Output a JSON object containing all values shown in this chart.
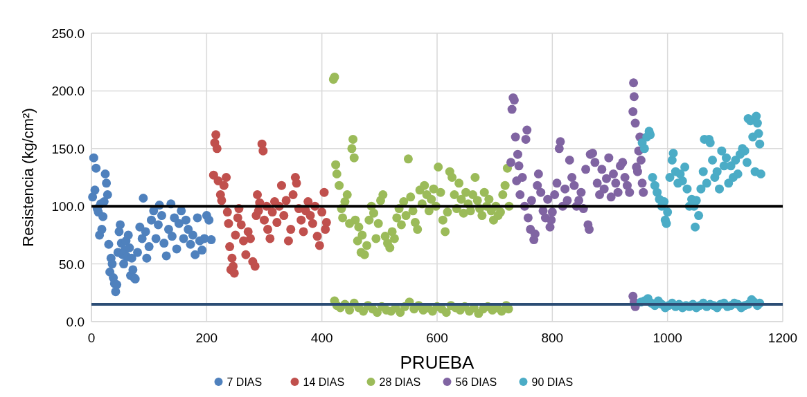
{
  "chart_data": {
    "type": "scatter",
    "xlabel": "PRUEBA",
    "ylabel": "Resistencia (kg/cm²)",
    "xlim": [
      0,
      1200
    ],
    "xticks": [
      0,
      200,
      400,
      600,
      800,
      1000,
      1200
    ],
    "ylim": [
      0,
      250
    ],
    "yticks": [
      {
        "value": 0,
        "label": "0.0"
      },
      {
        "value": 50,
        "label": "50.0"
      },
      {
        "value": 100,
        "label": "100.0"
      },
      {
        "value": 150,
        "label": "150.0"
      },
      {
        "value": 200,
        "label": "200.0"
      },
      {
        "value": 250,
        "label": "250.0"
      }
    ],
    "grid": true,
    "legend": "bottom",
    "marker": "circle",
    "ref_lines": [
      {
        "axis": "y",
        "value": 100,
        "color": "#000000"
      },
      {
        "axis": "y",
        "value": 15,
        "color": "#2c4d75"
      }
    ],
    "series": [
      {
        "name": "7 DIAS",
        "color": "#4f81bd",
        "x": [
          2,
          4,
          6,
          8,
          10,
          12,
          14,
          16,
          18,
          20,
          22,
          24,
          26,
          28,
          30,
          32,
          34,
          36,
          38,
          40,
          42,
          44,
          46,
          48,
          50,
          52,
          54,
          56,
          58,
          60,
          62,
          64,
          66,
          68,
          70,
          72,
          74,
          76,
          80,
          84,
          88,
          90,
          94,
          96,
          100,
          104,
          108,
          112,
          116,
          118,
          122,
          126,
          130,
          134,
          138,
          140,
          144,
          148,
          152,
          156,
          160,
          164,
          168,
          172,
          176,
          180,
          184,
          188,
          192,
          196,
          200,
          204,
          208
        ],
        "values": [
          108,
          142,
          114,
          133,
          98,
          95,
          75,
          102,
          80,
          91,
          104,
          128,
          120,
          110,
          67,
          43,
          55,
          50,
          38,
          33,
          26,
          32,
          60,
          78,
          84,
          68,
          58,
          50,
          62,
          70,
          56,
          75,
          64,
          40,
          55,
          45,
          38,
          37,
          60,
          82,
          72,
          107,
          78,
          55,
          65,
          88,
          96,
          72,
          84,
          101,
          92,
          68,
          57,
          80,
          102,
          74,
          90,
          63,
          85,
          96,
          72,
          88,
          80,
          67,
          75,
          58,
          90,
          70,
          62,
          72,
          92,
          88,
          71
        ]
      },
      {
        "name": "14 DIAS",
        "color": "#c0504d",
        "x": [
          212,
          214,
          216,
          218,
          220,
          224,
          226,
          230,
          234,
          236,
          238,
          240,
          242,
          244,
          246,
          248,
          250,
          254,
          256,
          260,
          264,
          268,
          272,
          276,
          280,
          284,
          286,
          288,
          290,
          292,
          296,
          298,
          300,
          304,
          306,
          310,
          314,
          318,
          322,
          326,
          330,
          334,
          338,
          342,
          346,
          350,
          354,
          356,
          360,
          364,
          368,
          372,
          376,
          380,
          384,
          388,
          392,
          396,
          400,
          404,
          406,
          408
        ],
        "values": [
          127,
          155,
          162,
          150,
          122,
          110,
          105,
          118,
          125,
          95,
          85,
          65,
          45,
          55,
          48,
          42,
          75,
          90,
          98,
          84,
          70,
          58,
          78,
          72,
          52,
          48,
          92,
          110,
          96,
          103,
          154,
          148,
          88,
          100,
          80,
          72,
          95,
          104,
          86,
          100,
          118,
          92,
          105,
          70,
          80,
          110,
          125,
          120,
          98,
          88,
          78,
          96,
          104,
          92,
          85,
          100,
          74,
          66,
          95,
          112,
          80,
          86
        ]
      },
      {
        "name": "28 DIAS",
        "color": "#9bbb59",
        "x": [
          420,
          422,
          424,
          426,
          430,
          434,
          436,
          440,
          444,
          448,
          452,
          454,
          456,
          458,
          462,
          464,
          468,
          470,
          474,
          478,
          482,
          486,
          490,
          494,
          498,
          502,
          506,
          510,
          514,
          518,
          522,
          526,
          530,
          534,
          538,
          542,
          546,
          550,
          554,
          558,
          562,
          566,
          570,
          574,
          578,
          582,
          586,
          590,
          594,
          598,
          602,
          606,
          610,
          614,
          618,
          622,
          626,
          630,
          634,
          638,
          642,
          646,
          650,
          654,
          658,
          662,
          666,
          670,
          674,
          678,
          682,
          686,
          690,
          694,
          698,
          702,
          706,
          710,
          714,
          718,
          722,
          725,
          422,
          426,
          432,
          440,
          448,
          456,
          464,
          472,
          480,
          488,
          496,
          504,
          512,
          520,
          528,
          536,
          544,
          552,
          560,
          568,
          576,
          584,
          592,
          600,
          608,
          616,
          624,
          632,
          640,
          648,
          656,
          664,
          672,
          680,
          688,
          696,
          704,
          712,
          720,
          724
        ],
        "values": [
          210,
          212,
          136,
          128,
          118,
          98,
          90,
          104,
          110,
          85,
          150,
          158,
          142,
          88,
          70,
          82,
          60,
          75,
          58,
          66,
          88,
          100,
          94,
          72,
          85,
          105,
          110,
          74,
          68,
          64,
          78,
          72,
          90,
          98,
          84,
          104,
          92,
          141,
          108,
          96,
          86,
          80,
          114,
          102,
          118,
          110,
          96,
          106,
          115,
          100,
          134,
          112,
          88,
          78,
          95,
          130,
          125,
          110,
          98,
          120,
          106,
          94,
          112,
          102,
          96,
          110,
          125,
          105,
          98,
          92,
          112,
          100,
          106,
          96,
          88,
          100,
          92,
          95,
          110,
          118,
          133,
          100,
          18,
          14,
          12,
          15,
          10,
          16,
          12,
          9,
          14,
          11,
          8,
          13,
          10,
          9,
          12,
          8,
          13,
          17,
          11,
          14,
          10,
          12,
          9,
          13,
          11,
          8,
          14,
          12,
          10,
          13,
          9,
          12,
          7,
          11,
          13,
          10,
          12,
          9,
          14,
          11
        ]
      },
      {
        "name": "56 DIAS",
        "color": "#8064a2",
        "x": [
          728,
          730,
          732,
          734,
          736,
          738,
          740,
          742,
          744,
          748,
          752,
          754,
          756,
          758,
          762,
          764,
          768,
          770,
          774,
          776,
          780,
          784,
          788,
          792,
          796,
          798,
          800,
          804,
          808,
          812,
          814,
          818,
          822,
          826,
          830,
          834,
          838,
          842,
          846,
          850,
          854,
          858,
          862,
          864,
          866,
          870,
          874,
          878,
          882,
          886,
          890,
          894,
          898,
          902,
          906,
          910,
          914,
          918,
          922,
          926,
          930,
          934,
          940,
          941,
          942,
          944,
          946,
          948,
          950,
          952,
          954,
          956,
          958,
          940,
          942,
          944
        ],
        "values": [
          138,
          184,
          194,
          192,
          160,
          122,
          145,
          135,
          110,
          125,
          100,
          158,
          166,
          90,
          80,
          105,
          71,
          76,
          118,
          128,
          112,
          96,
          90,
          106,
          82,
          88,
          95,
          110,
          120,
          150,
          156,
          100,
          115,
          105,
          140,
          125,
          118,
          100,
          105,
          112,
          98,
          132,
          84,
          80,
          145,
          146,
          138,
          120,
          110,
          132,
          115,
          124,
          142,
          108,
          128,
          120,
          112,
          135,
          138,
          125,
          118,
          112,
          182,
          207,
          195,
          172,
          134,
          130,
          148,
          160,
          140,
          120,
          112,
          22,
          17,
          13
        ]
      },
      {
        "name": "90 DIAS",
        "color": "#4bacc6",
        "x": [
          956,
          960,
          964,
          968,
          970,
          974,
          978,
          982,
          986,
          990,
          994,
          996,
          998,
          1000,
          1004,
          1008,
          1010,
          1014,
          1018,
          1022,
          1026,
          1030,
          1034,
          1038,
          1042,
          1046,
          1048,
          1050,
          1054,
          1058,
          1062,
          1064,
          1068,
          1072,
          1074,
          1078,
          1082,
          1086,
          1090,
          1094,
          1098,
          1102,
          1106,
          1110,
          1114,
          1118,
          1122,
          1126,
          1130,
          1134,
          1138,
          1140,
          1144,
          1148,
          1152,
          1154,
          1156,
          1158,
          1160,
          1162,
          954,
          960,
          966,
          972,
          978,
          984,
          990,
          996,
          1002,
          1008,
          1014,
          1020,
          1026,
          1032,
          1038,
          1044,
          1050,
          1056,
          1062,
          1068,
          1074,
          1080,
          1086,
          1092,
          1098,
          1104,
          1110,
          1116,
          1122,
          1128,
          1134,
          1140,
          1146,
          1150,
          1156,
          1160
        ],
        "values": [
          155,
          150,
          160,
          165,
          162,
          125,
          118,
          112,
          106,
          100,
          104,
          88,
          85,
          95,
          125,
          140,
          146,
          130,
          120,
          128,
          122,
          134,
          115,
          100,
          106,
          100,
          82,
          105,
          92,
          115,
          130,
          158,
          120,
          158,
          155,
          140,
          125,
          130,
          115,
          148,
          135,
          142,
          120,
          135,
          125,
          140,
          128,
          145,
          150,
          148,
          138,
          176,
          174,
          160,
          130,
          178,
          172,
          163,
          154,
          128,
          17,
          18,
          20,
          16,
          14,
          18,
          15,
          12,
          14,
          16,
          13,
          15,
          12,
          14,
          13,
          15,
          12,
          14,
          16,
          13,
          15,
          14,
          12,
          15,
          16,
          13,
          14,
          16,
          15,
          12,
          14,
          15,
          19,
          17,
          14,
          16
        ]
      }
    ]
  }
}
